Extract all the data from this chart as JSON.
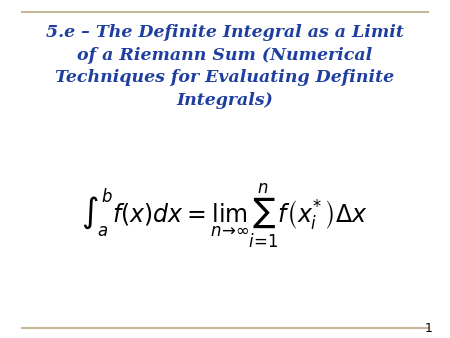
{
  "title_line1": "5.e – The Definite Integral as a Limit",
  "title_line2": "of a Riemann Sum (Numerical",
  "title_line3": "Techniques for Evaluating Definite",
  "title_line4": "Integrals)",
  "title_color": "#1F3FA0",
  "formula": "\\int_{a}^{b} f\\left(x\\right)dx = \\lim_{n \\to \\infty} \\sum_{i=1}^{n} f\\left(x_{i}^{*}\\right)\\Delta x",
  "formula_color": "#000000",
  "background_color": "#FFFFFF",
  "border_color": "#C8B89A",
  "slide_number": "1",
  "slide_number_color": "#000000",
  "fig_width": 4.5,
  "fig_height": 3.38,
  "dpi": 100
}
